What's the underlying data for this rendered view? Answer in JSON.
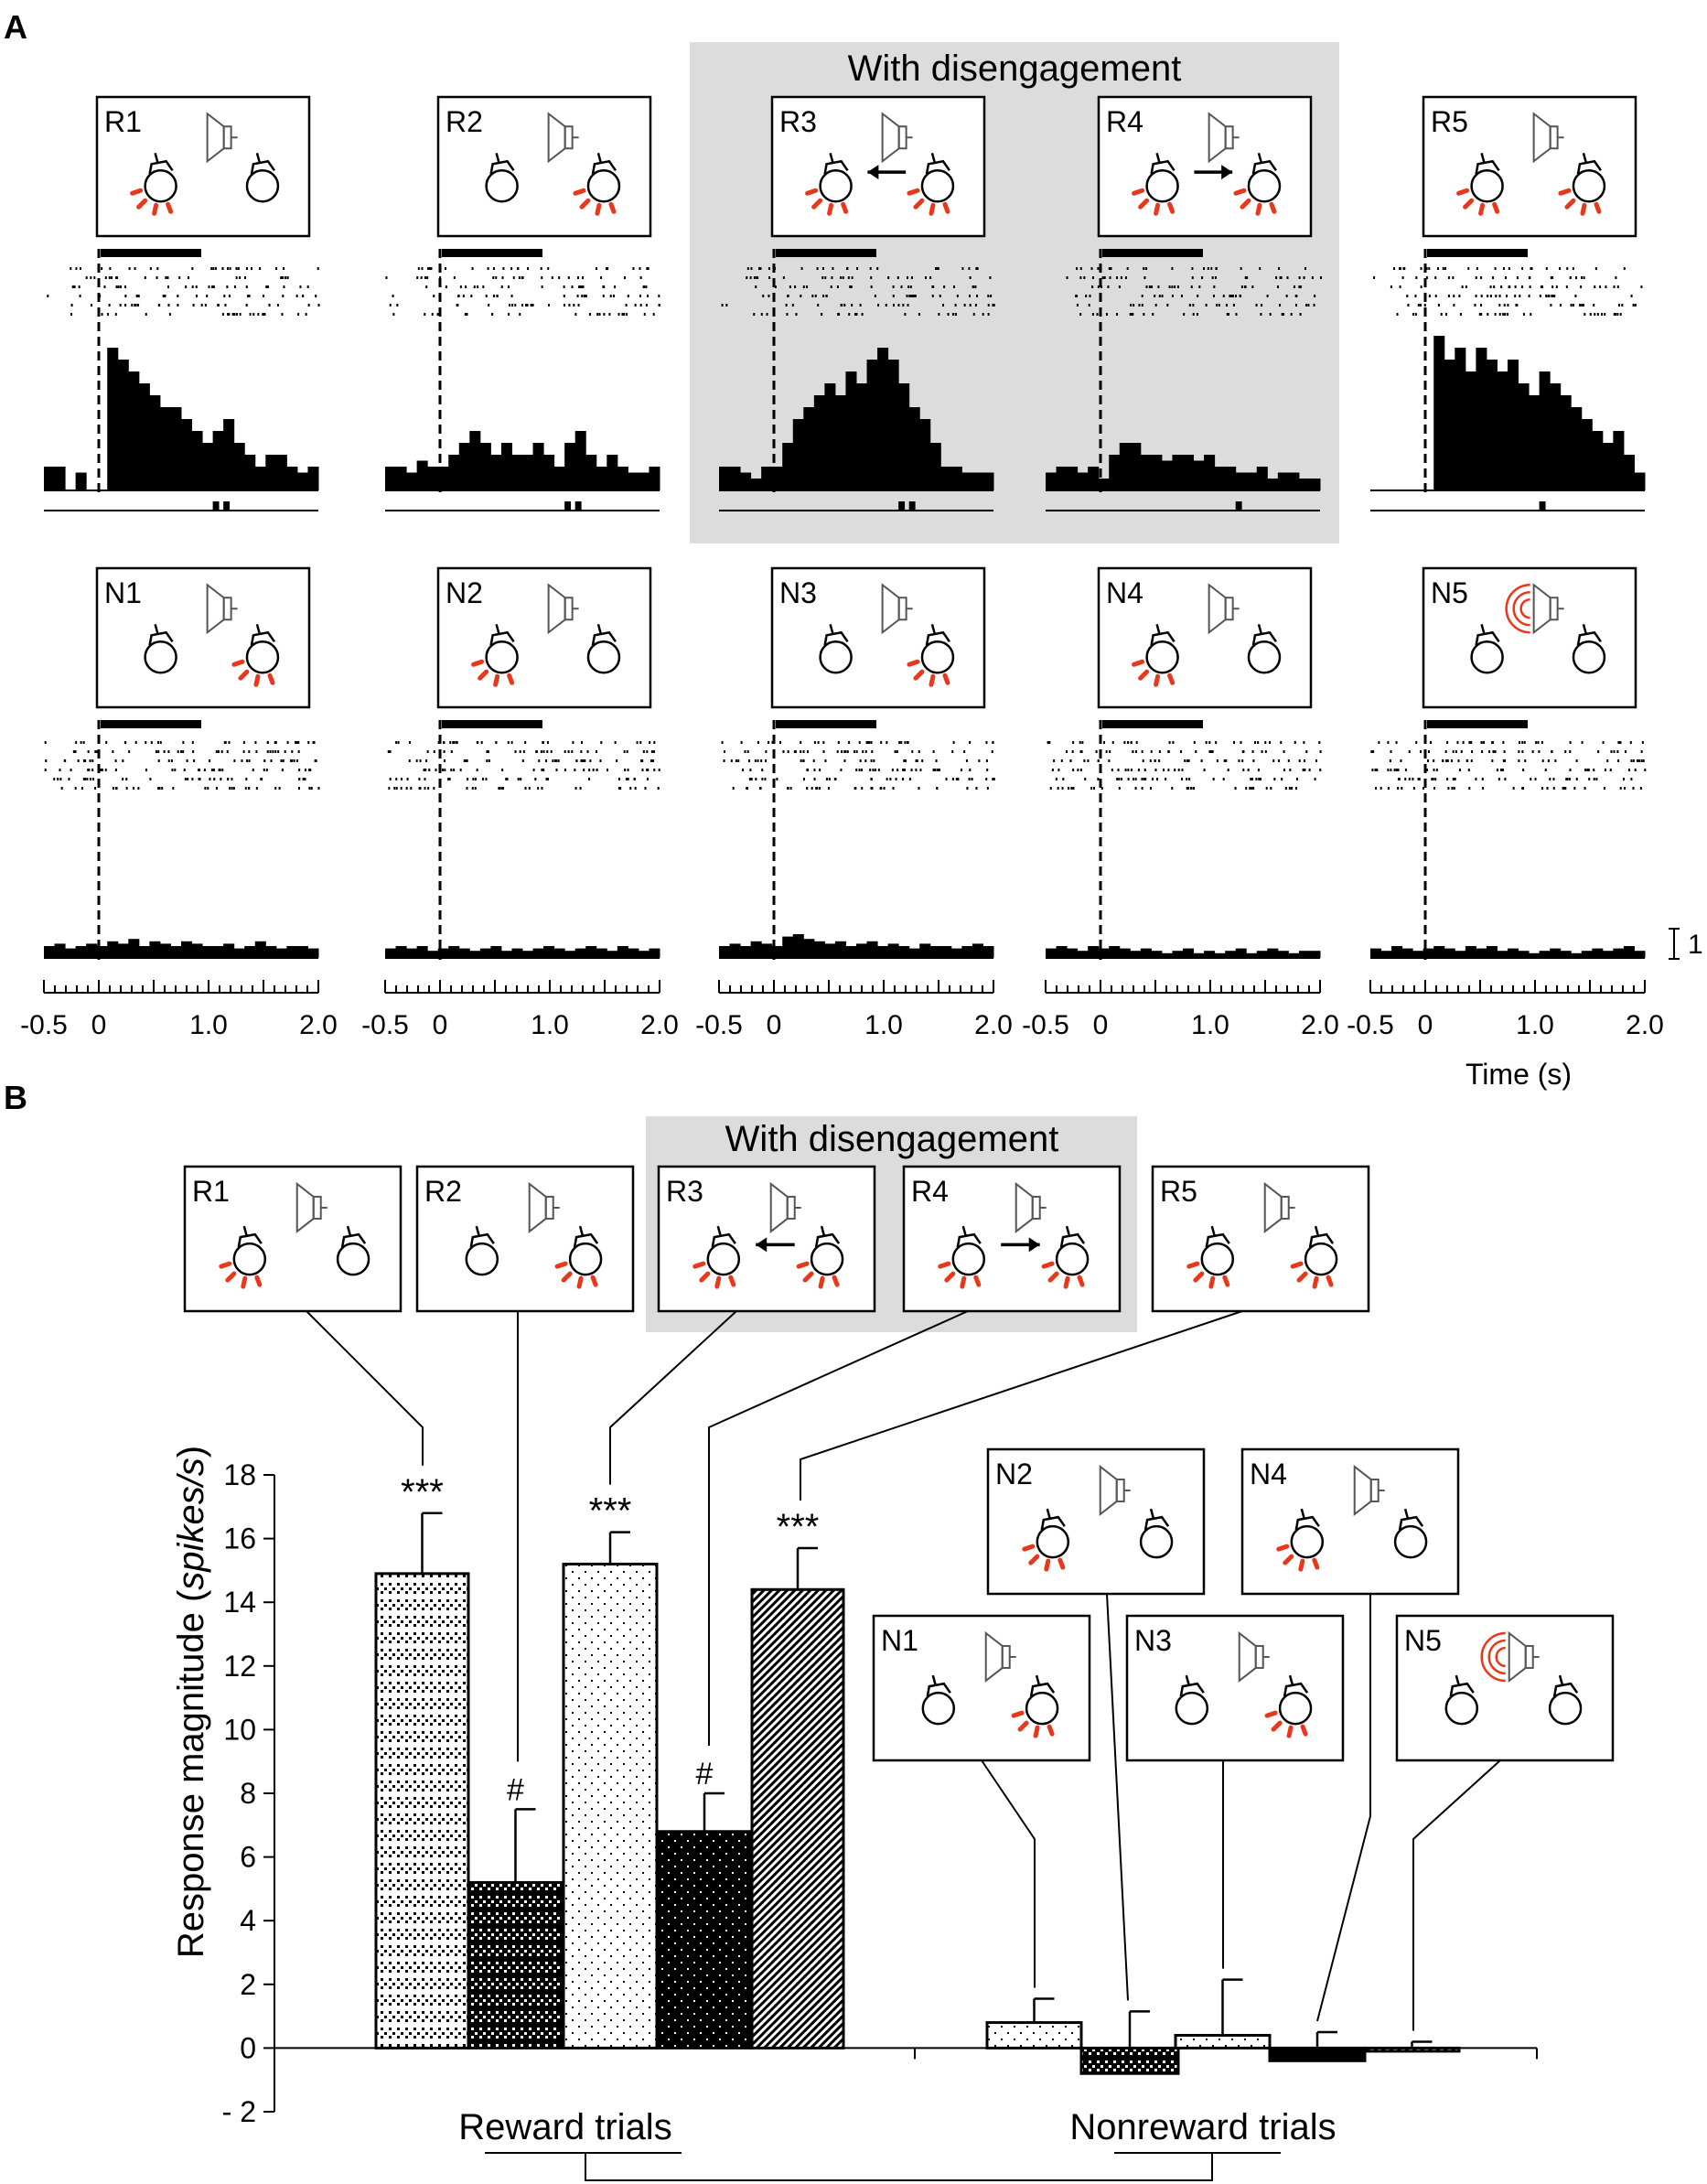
{
  "panel_a": {
    "label": "A",
    "group_label": "With disengagement",
    "time_axis": {
      "title": "Time (s)",
      "ticks": [
        "-0.5",
        "0",
        "1.0",
        "2.0"
      ],
      "range": [
        -0.5,
        2.0
      ],
      "scale_bar_label": "1"
    },
    "reward_rows": [
      {
        "id": "R1",
        "psth": [
          2,
          2,
          0,
          1.5,
          0,
          0,
          12,
          11,
          10,
          9,
          8,
          7,
          7,
          6,
          5,
          4,
          5,
          6,
          4,
          3,
          2,
          3,
          3,
          2,
          1.5,
          2
        ],
        "stim": [
          0,
          0,
          0,
          0,
          0,
          0,
          0,
          0,
          0,
          0,
          0,
          0,
          0,
          0,
          0,
          0,
          1,
          1,
          0,
          0,
          0,
          0,
          0,
          0,
          0,
          0
        ]
      },
      {
        "id": "R2",
        "psth": [
          2,
          2,
          1.5,
          2.5,
          2,
          2,
          3,
          4,
          5,
          4,
          3,
          4,
          3,
          3,
          4,
          3,
          2,
          4,
          5,
          3,
          2,
          3,
          2,
          1.5,
          1.5,
          2
        ],
        "stim": [
          0,
          0,
          0,
          0,
          0,
          0,
          0,
          0,
          0,
          0,
          0,
          0,
          0,
          0,
          0,
          0,
          0,
          1,
          1,
          0,
          0,
          0,
          0,
          0,
          0,
          0
        ]
      },
      {
        "id": "R3",
        "psth": [
          2,
          2,
          1.5,
          1,
          2,
          2,
          4,
          6,
          7,
          8,
          9,
          8,
          10,
          9,
          11,
          12,
          11,
          9,
          7,
          6,
          4,
          2,
          2,
          1.5,
          1.5,
          1.5
        ],
        "stim": [
          0,
          0,
          0,
          0,
          0,
          0,
          0,
          0,
          0,
          0,
          0,
          0,
          0,
          0,
          0,
          0,
          0,
          1,
          1,
          0,
          0,
          0,
          0,
          0,
          0,
          0
        ]
      },
      {
        "id": "R4",
        "psth": [
          1.5,
          2,
          2,
          1.5,
          2,
          1,
          3,
          4,
          4,
          3,
          3,
          2.5,
          3,
          3,
          2.5,
          3,
          2,
          2,
          1.5,
          1.5,
          2,
          1,
          1.5,
          1.5,
          1,
          1
        ],
        "stim": [
          0,
          0,
          0,
          0,
          0,
          0,
          0,
          0,
          0,
          0,
          0,
          0,
          0,
          0,
          0,
          0,
          0,
          0,
          1,
          0,
          0,
          0,
          0,
          0,
          0,
          0
        ]
      },
      {
        "id": "R5",
        "psth": [
          0,
          0,
          0,
          0,
          0,
          0,
          13,
          11,
          12,
          10,
          12,
          11,
          10,
          11,
          9,
          8,
          10,
          9,
          8,
          7,
          6,
          5,
          4,
          5,
          3,
          1.5
        ],
        "stim": [
          0,
          0,
          0,
          0,
          0,
          0,
          0,
          0,
          0,
          0,
          0,
          0,
          0,
          0,
          0,
          0,
          1,
          0,
          0,
          0,
          0,
          0,
          0,
          0,
          0,
          0
        ]
      }
    ],
    "nonreward_rows": [
      {
        "id": "N1",
        "psth": [
          1,
          1.2,
          0.8,
          1,
          1.2,
          1,
          1.4,
          1.2,
          1.6,
          1,
          1.4,
          1.2,
          1,
          1.4,
          1.2,
          1,
          1,
          1.2,
          0.8,
          1,
          1.4,
          1,
          0.8,
          1,
          1,
          0.8
        ],
        "stim": []
      },
      {
        "id": "N2",
        "psth": [
          0.8,
          1,
          0.8,
          1,
          0.6,
          0.8,
          1,
          0.8,
          0.6,
          0.8,
          1,
          0.6,
          0.8,
          0.6,
          0.8,
          1,
          0.8,
          0.6,
          0.8,
          1,
          0.8,
          0.6,
          1,
          0.8,
          0.6,
          0.8
        ],
        "stim": []
      },
      {
        "id": "N3",
        "psth": [
          1,
          1.2,
          1,
          1.4,
          1.2,
          1,
          1.8,
          2,
          1.6,
          1.4,
          1.2,
          1.4,
          1,
          1.2,
          1.4,
          1,
          1.2,
          1,
          0.8,
          1.2,
          1,
          1,
          0.8,
          1,
          1.2,
          1
        ],
        "stim": []
      },
      {
        "id": "N4",
        "psth": [
          0.8,
          1,
          0.8,
          0.6,
          1,
          0.8,
          1,
          0.8,
          0.6,
          0.8,
          0.6,
          0.4,
          0.6,
          0.8,
          0.4,
          0.6,
          0.4,
          0.6,
          0.8,
          0.4,
          0.6,
          0.8,
          0.6,
          0.4,
          0.6,
          0.6
        ],
        "stim": []
      },
      {
        "id": "N5",
        "psth": [
          0.8,
          0.6,
          1,
          0.8,
          0.6,
          0.8,
          1,
          0.8,
          0.6,
          1,
          0.8,
          1,
          0.6,
          0.8,
          0.6,
          0.4,
          0.6,
          0.8,
          0.6,
          0.4,
          0.6,
          0.8,
          0.6,
          0.8,
          1,
          0.6
        ],
        "stim": []
      }
    ]
  },
  "panel_b": {
    "label": "B",
    "group_label": "With disengagement",
    "significance": {
      "reward": [
        "***",
        "#",
        "***",
        "#",
        "***"
      ]
    }
  },
  "scenario_cards": [
    {
      "id": "R1"
    },
    {
      "id": "R2"
    },
    {
      "id": "R3"
    },
    {
      "id": "R4"
    },
    {
      "id": "R5"
    },
    {
      "id": "N1"
    },
    {
      "id": "N2"
    },
    {
      "id": "N3"
    },
    {
      "id": "N4"
    },
    {
      "id": "N5"
    }
  ],
  "chart_data": {
    "type": "bar",
    "title": "",
    "xlabel": "",
    "ylabel": "Response magnitude (spikes/s)",
    "ylabel_plain": "Response magnitude (",
    "ylabel_italic": "spikes/s",
    "ylabel_close": ")",
    "ylim": [
      -2,
      18
    ],
    "yticks": [
      "18",
      "16",
      "14",
      "12",
      "10",
      "8",
      "6",
      "4",
      "2",
      "0",
      "- 2"
    ],
    "groups": [
      "Reward trials",
      "Nonreward trials"
    ],
    "categories": [
      "R1",
      "R2",
      "R3",
      "R4",
      "R5",
      "N1",
      "N2",
      "N3",
      "N4",
      "N5"
    ],
    "values": [
      14.9,
      5.2,
      15.2,
      6.8,
      14.4,
      0.8,
      -0.8,
      0.4,
      -0.4,
      -0.1
    ],
    "errors": [
      1.9,
      2.3,
      1.0,
      1.2,
      1.3,
      0.75,
      1.95,
      1.75,
      0.9,
      0.3
    ],
    "patterns": [
      "checker-light",
      "checker-dark",
      "dots-light",
      "dots-dark",
      "diagonal",
      "dots-light",
      "checker-dark",
      "dots-light",
      "solid-dark",
      "diagonal"
    ],
    "annotations": [
      "***",
      "#",
      "***",
      "#",
      "***",
      "",
      "",
      "",
      "",
      ""
    ]
  }
}
